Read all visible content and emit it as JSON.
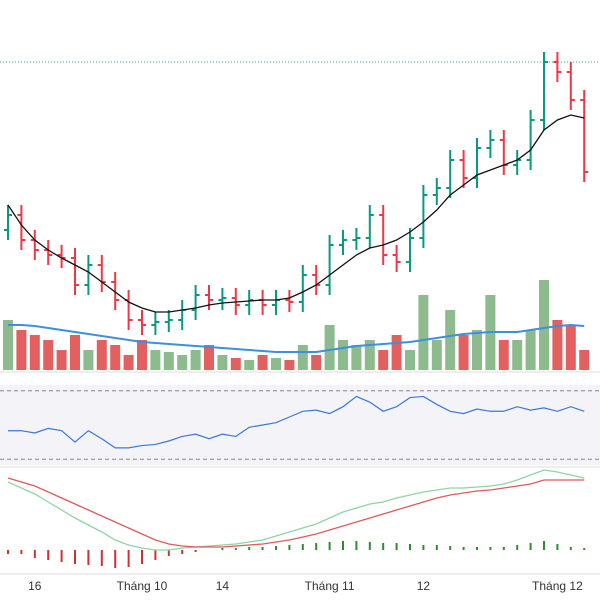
{
  "chart_data": [
    {
      "type": "ohlc",
      "categories": [
        null,
        null,
        "16",
        null,
        null,
        null,
        null,
        null,
        null,
        null,
        "Tháng 10",
        null,
        null,
        null,
        null,
        null,
        "14",
        null,
        null,
        null,
        null,
        null,
        null,
        null,
        "Tháng 11",
        null,
        null,
        null,
        null,
        null,
        null,
        "12",
        null,
        null,
        null,
        null,
        null,
        null,
        null,
        null,
        null,
        "Tháng 12",
        null,
        null
      ],
      "open": [
        140,
        155,
        130,
        120,
        115,
        112,
        85,
        105,
        88,
        70,
        50,
        45,
        48,
        50,
        60,
        75,
        70,
        72,
        65,
        70,
        65,
        70,
        68,
        95,
        85,
        125,
        130,
        132,
        155,
        115,
        108,
        132,
        175,
        182,
        210,
        192,
        222,
        230,
        205,
        210,
        250,
        308,
        298,
        270
      ],
      "high": [
        165,
        165,
        140,
        130,
        125,
        122,
        115,
        115,
        98,
        80,
        60,
        58,
        60,
        70,
        85,
        85,
        82,
        82,
        80,
        80,
        80,
        80,
        105,
        105,
        135,
        140,
        142,
        165,
        165,
        125,
        142,
        185,
        192,
        220,
        220,
        232,
        240,
        240,
        220,
        260,
        318,
        318,
        308,
        280
      ],
      "low": [
        130,
        120,
        110,
        105,
        102,
        75,
        75,
        78,
        60,
        40,
        35,
        35,
        38,
        40,
        50,
        60,
        60,
        55,
        55,
        55,
        55,
        58,
        58,
        75,
        75,
        115,
        120,
        122,
        105,
        98,
        98,
        122,
        165,
        172,
        182,
        182,
        212,
        195,
        195,
        200,
        240,
        288,
        260,
        188
      ],
      "close": [
        155,
        130,
        120,
        115,
        112,
        85,
        105,
        88,
        70,
        50,
        45,
        48,
        50,
        60,
        75,
        70,
        72,
        65,
        70,
        65,
        70,
        68,
        95,
        85,
        125,
        130,
        132,
        155,
        115,
        108,
        132,
        175,
        182,
        210,
        192,
        222,
        230,
        205,
        210,
        250,
        308,
        298,
        270,
        198
      ],
      "ma": [
        165,
        145,
        130,
        120,
        112,
        105,
        98,
        88,
        78,
        68,
        62,
        58,
        58,
        60,
        62,
        65,
        67,
        68,
        69,
        70,
        70,
        72,
        78,
        85,
        95,
        105,
        115,
        122,
        125,
        130,
        138,
        148,
        160,
        175,
        185,
        195,
        200,
        205,
        210,
        220,
        240,
        250,
        255,
        252
      ],
      "volume": [
        50,
        40,
        35,
        30,
        20,
        35,
        20,
        30,
        25,
        15,
        30,
        20,
        18,
        15,
        20,
        25,
        15,
        12,
        10,
        15,
        12,
        10,
        25,
        15,
        45,
        30,
        25,
        30,
        20,
        35,
        20,
        75,
        30,
        60,
        35,
        40,
        75,
        30,
        30,
        40,
        90,
        50,
        45,
        20
      ],
      "volume_ma": [
        45,
        45,
        44,
        42,
        40,
        38,
        36,
        34,
        32,
        30,
        28,
        27,
        26,
        25,
        24,
        23,
        22,
        21,
        20,
        19,
        18,
        18,
        18,
        18,
        20,
        22,
        24,
        25,
        26,
        27,
        28,
        30,
        32,
        34,
        36,
        37,
        38,
        38,
        38,
        40,
        42,
        44,
        45,
        44
      ],
      "price_line": 308,
      "ylim": [
        0,
        370
      ],
      "volume_ylim": [
        0,
        370
      ],
      "up_color": "#089981",
      "down_color": "#f23645",
      "ma_color": "#111111",
      "volume_up_color": "#8dbb8d",
      "volume_down_color": "#e36060",
      "volume_ma_color": "#3d8fe0"
    },
    {
      "type": "line",
      "values": [
        45,
        45,
        43,
        47,
        45,
        35,
        45,
        38,
        30,
        30,
        32,
        33,
        36,
        40,
        42,
        38,
        42,
        40,
        48,
        50,
        52,
        57,
        62,
        63,
        60,
        66,
        75,
        70,
        62,
        66,
        74,
        75,
        68,
        62,
        60,
        64,
        62,
        62,
        66,
        63,
        65,
        62,
        66,
        62
      ],
      "ylim": [
        15,
        85
      ],
      "bands": [
        80,
        20
      ],
      "color": "#3c78d8"
    },
    {
      "type": "macd",
      "macd": [
        68,
        62,
        56,
        48,
        40,
        32,
        25,
        18,
        10,
        5,
        2,
        0,
        0,
        2,
        3,
        4,
        5,
        6,
        8,
        10,
        14,
        18,
        22,
        26,
        32,
        38,
        42,
        46,
        48,
        52,
        55,
        58,
        60,
        62,
        62,
        63,
        64,
        66,
        70,
        75,
        80,
        78,
        75,
        72
      ],
      "signal": [
        72,
        68,
        64,
        58,
        52,
        46,
        40,
        34,
        28,
        22,
        16,
        10,
        6,
        4,
        3,
        3,
        3,
        4,
        5,
        6,
        8,
        10,
        13,
        16,
        20,
        24,
        28,
        32,
        36,
        40,
        44,
        48,
        52,
        55,
        57,
        59,
        60,
        62,
        64,
        66,
        70,
        70,
        70,
        70
      ],
      "histogram": [
        -4,
        -4,
        -8,
        -10,
        -12,
        -14,
        -15,
        -16,
        -18,
        -17,
        -14,
        -10,
        -6,
        -4,
        -2,
        0,
        2,
        2,
        3,
        3,
        4,
        5,
        6,
        7,
        8,
        9,
        9,
        8,
        7,
        7,
        6,
        5,
        5,
        4,
        3,
        3,
        3,
        3,
        5,
        7,
        9,
        6,
        3,
        2
      ],
      "ylim": [
        -20,
        80
      ],
      "macd_color": "#8fd4a8",
      "signal_color": "#e05a5a",
      "pos_color": "#2e8b2e",
      "neg_color": "#d32f2f"
    }
  ]
}
